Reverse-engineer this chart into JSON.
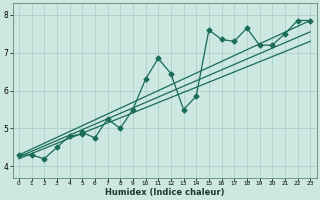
{
  "xlabel": "Humidex (Indice chaleur)",
  "ylabel": "",
  "xlim": [
    -0.5,
    23.5
  ],
  "ylim": [
    3.7,
    8.3
  ],
  "xticks": [
    0,
    1,
    2,
    3,
    4,
    5,
    6,
    7,
    8,
    9,
    10,
    11,
    12,
    13,
    14,
    15,
    16,
    17,
    18,
    19,
    20,
    21,
    22,
    23
  ],
  "yticks": [
    4,
    5,
    6,
    7,
    8
  ],
  "bg_color": "#cce8e0",
  "line_color": "#1a6b5a",
  "grid_color": "#a8ccc8",
  "curve_x": [
    0,
    1,
    2,
    3,
    4,
    5,
    5,
    6,
    7,
    8,
    9,
    10,
    11,
    12,
    13,
    14,
    15,
    16,
    17,
    18,
    19,
    20,
    21,
    22,
    23
  ],
  "curve_y": [
    4.3,
    4.3,
    4.2,
    4.5,
    4.8,
    4.85,
    4.9,
    4.75,
    5.25,
    5.0,
    5.5,
    6.3,
    6.85,
    6.45,
    5.5,
    5.85,
    7.6,
    7.35,
    7.3,
    7.65,
    7.2,
    7.2,
    7.5,
    7.85,
    7.85
  ],
  "line1_x": [
    0,
    23
  ],
  "line1_y": [
    4.2,
    7.3
  ],
  "line2_x": [
    0,
    23
  ],
  "line2_y": [
    4.3,
    7.85
  ],
  "line3_x": [
    0,
    23
  ],
  "line3_y": [
    4.25,
    7.55
  ],
  "marker_size": 2.5,
  "line_width": 0.9,
  "xlabel_fontsize": 6.0,
  "xtick_fontsize": 4.2,
  "ytick_fontsize": 5.5
}
